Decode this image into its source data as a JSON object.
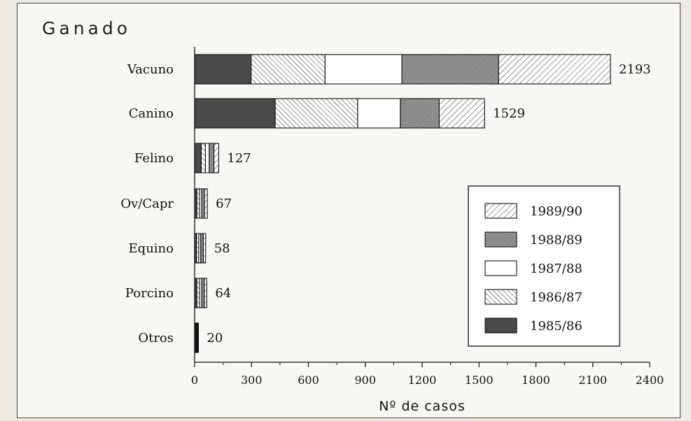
{
  "chart_data": {
    "type": "bar",
    "orientation": "horizontal",
    "stacked": true,
    "title": "Ganado",
    "xlabel": "Nº de casos",
    "ylabel": "",
    "xlim": [
      0,
      2400
    ],
    "xticks": [
      0,
      300,
      600,
      900,
      1200,
      1500,
      1800,
      2100,
      2400
    ],
    "grid": false,
    "legend_position": "bottom-right",
    "categories": [
      "Vacuno",
      "Canino",
      "Felino",
      "Ov/Capr",
      "Equino",
      "Porcino",
      "Otros"
    ],
    "totals": [
      "2193",
      "1529",
      "127",
      "67",
      "58",
      "64",
      "20"
    ],
    "series": [
      {
        "name": "1985/86",
        "pattern": "solid-dark",
        "values": [
          298,
          425,
          35,
          12,
          10,
          12,
          6
        ]
      },
      {
        "name": "1986/87",
        "pattern": "hatch-back",
        "values": [
          390,
          435,
          22,
          14,
          12,
          14,
          4
        ]
      },
      {
        "name": "1987/88",
        "pattern": "white",
        "values": [
          405,
          225,
          20,
          11,
          10,
          11,
          4
        ]
      },
      {
        "name": "1988/89",
        "pattern": "dense-hatch",
        "values": [
          510,
          205,
          25,
          15,
          14,
          14,
          3
        ]
      },
      {
        "name": "1989/90",
        "pattern": "hatch-forward",
        "values": [
          590,
          239,
          25,
          15,
          12,
          13,
          3
        ]
      }
    ]
  }
}
